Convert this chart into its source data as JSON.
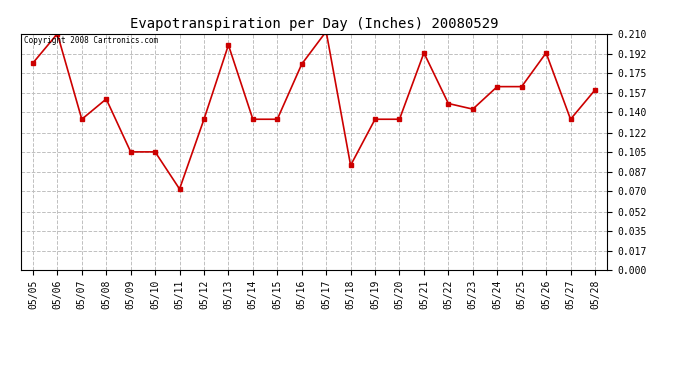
{
  "title": "Evapotranspiration per Day (Inches) 20080529",
  "copyright_text": "Copyright 2008 Cartronics.com",
  "dates": [
    "05/05",
    "05/06",
    "05/07",
    "05/08",
    "05/09",
    "05/10",
    "05/11",
    "05/12",
    "05/13",
    "05/14",
    "05/15",
    "05/16",
    "05/17",
    "05/18",
    "05/19",
    "05/20",
    "05/21",
    "05/22",
    "05/23",
    "05/24",
    "05/25",
    "05/26",
    "05/27",
    "05/28"
  ],
  "values": [
    0.184,
    0.21,
    0.134,
    0.152,
    0.105,
    0.105,
    0.072,
    0.134,
    0.2,
    0.134,
    0.134,
    0.183,
    0.212,
    0.093,
    0.134,
    0.134,
    0.193,
    0.148,
    0.143,
    0.163,
    0.163,
    0.193,
    0.134,
    0.16
  ],
  "line_color": "#cc0000",
  "marker": "s",
  "marker_size": 2.5,
  "line_width": 1.2,
  "yticks": [
    0.0,
    0.017,
    0.035,
    0.052,
    0.07,
    0.087,
    0.105,
    0.122,
    0.14,
    0.157,
    0.175,
    0.192,
    0.21
  ],
  "ylim": [
    0.0,
    0.21
  ],
  "background_color": "#ffffff",
  "grid_color": "#c0c0c0",
  "title_fontsize": 10,
  "tick_fontsize": 7
}
